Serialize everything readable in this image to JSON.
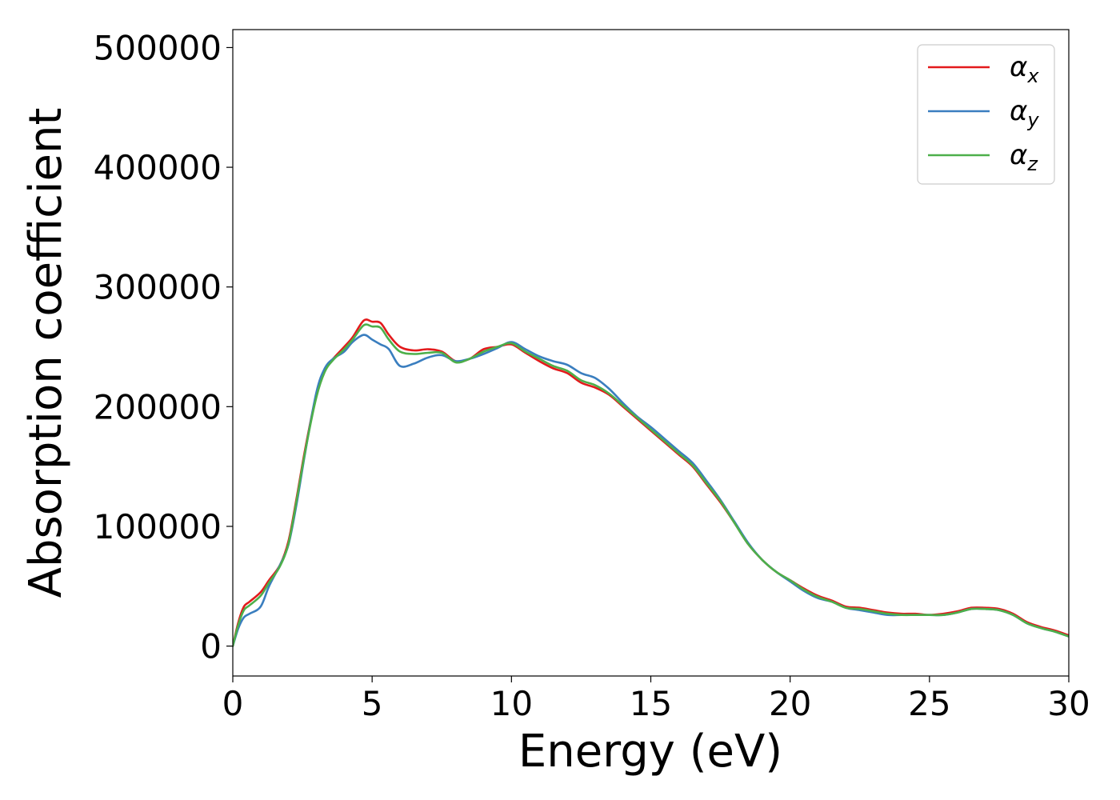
{
  "chart_data": {
    "type": "line",
    "title": "",
    "xlabel": "Energy (eV)",
    "ylabel": "Absorption coefficient",
    "xlim": [
      0,
      30
    ],
    "ylim": [
      -25000,
      515000
    ],
    "xticks": [
      0,
      5,
      10,
      15,
      20,
      25,
      30
    ],
    "yticks": [
      0,
      100000,
      200000,
      300000,
      400000,
      500000
    ],
    "grid": false,
    "legend_position": "top-right",
    "series": [
      {
        "name": "α",
        "subscript": "x",
        "color": "#e31a1c",
        "x": [
          0,
          0.2,
          0.4,
          0.6,
          1.0,
          1.3,
          1.7,
          2.0,
          2.3,
          2.6,
          3.0,
          3.3,
          3.6,
          4.0,
          4.3,
          4.7,
          5.0,
          5.3,
          5.6,
          6.0,
          6.5,
          7.0,
          7.5,
          8.0,
          8.5,
          9.0,
          9.5,
          10.0,
          10.5,
          11.0,
          11.5,
          12.0,
          12.5,
          13.0,
          13.5,
          14.0,
          14.5,
          15.0,
          15.5,
          16.0,
          16.5,
          17.0,
          17.5,
          18.0,
          18.5,
          19.0,
          19.5,
          20.0,
          20.5,
          21.0,
          21.5,
          22.0,
          22.5,
          23.0,
          23.5,
          24.0,
          24.5,
          25.0,
          25.5,
          26.0,
          26.5,
          27.0,
          27.5,
          28.0,
          28.5,
          29.0,
          29.5,
          30.0
        ],
        "y": [
          0,
          20000,
          33000,
          37000,
          45000,
          55000,
          68000,
          88000,
          125000,
          165000,
          210000,
          230000,
          240000,
          250000,
          258000,
          272000,
          271000,
          270000,
          260000,
          250000,
          247000,
          248000,
          246000,
          238000,
          240000,
          248000,
          250000,
          252000,
          245000,
          238000,
          232000,
          228000,
          220000,
          216000,
          210000,
          200000,
          190000,
          180000,
          170000,
          160000,
          150000,
          135000,
          120000,
          103000,
          85000,
          72000,
          62000,
          55000,
          48000,
          42000,
          38000,
          33000,
          32000,
          30000,
          28000,
          27000,
          27000,
          26000,
          27000,
          29000,
          32000,
          32000,
          31000,
          27000,
          20000,
          16000,
          13000,
          9000
        ]
      },
      {
        "name": "α",
        "subscript": "y",
        "color": "#3a7ebf",
        "x": [
          0,
          0.2,
          0.4,
          0.6,
          1.0,
          1.3,
          1.7,
          2.0,
          2.3,
          2.6,
          3.0,
          3.3,
          3.6,
          4.0,
          4.3,
          4.7,
          5.0,
          5.3,
          5.6,
          6.0,
          6.5,
          7.0,
          7.5,
          8.0,
          8.5,
          9.0,
          9.5,
          10.0,
          10.5,
          11.0,
          11.5,
          12.0,
          12.5,
          13.0,
          13.5,
          14.0,
          14.5,
          15.0,
          15.5,
          16.0,
          16.5,
          17.0,
          17.5,
          18.0,
          18.5,
          19.0,
          19.5,
          20.0,
          20.5,
          21.0,
          21.5,
          22.0,
          22.5,
          23.0,
          23.5,
          24.0,
          24.5,
          25.0,
          25.5,
          26.0,
          26.5,
          27.0,
          27.5,
          28.0,
          28.5,
          29.0,
          29.5,
          30.0
        ],
        "y": [
          0,
          15000,
          24000,
          27000,
          33000,
          50000,
          68000,
          85000,
          120000,
          162000,
          212000,
          232000,
          240000,
          246000,
          254000,
          260000,
          256000,
          252000,
          248000,
          234000,
          236000,
          241000,
          243000,
          238000,
          240000,
          244000,
          249000,
          254000,
          248000,
          242000,
          238000,
          235000,
          228000,
          224000,
          215000,
          203000,
          192000,
          183000,
          173000,
          163000,
          153000,
          138000,
          122000,
          104000,
          86000,
          72000,
          62000,
          54000,
          46000,
          40000,
          37000,
          32000,
          30000,
          28000,
          26000,
          26000,
          26000,
          26000,
          26000,
          28000,
          31000,
          31000,
          30000,
          26000,
          19000,
          15000,
          12000,
          8000
        ]
      },
      {
        "name": "α",
        "subscript": "z",
        "color": "#4daf4a",
        "x": [
          0,
          0.2,
          0.4,
          0.6,
          1.0,
          1.3,
          1.7,
          2.0,
          2.3,
          2.6,
          3.0,
          3.3,
          3.6,
          4.0,
          4.3,
          4.7,
          5.0,
          5.3,
          5.6,
          6.0,
          6.5,
          7.0,
          7.5,
          8.0,
          8.5,
          9.0,
          9.5,
          10.0,
          10.5,
          11.0,
          11.5,
          12.0,
          12.5,
          13.0,
          13.5,
          14.0,
          14.5,
          15.0,
          15.5,
          16.0,
          16.5,
          17.0,
          17.5,
          18.0,
          18.5,
          19.0,
          19.5,
          20.0,
          20.5,
          21.0,
          21.5,
          22.0,
          22.5,
          23.0,
          23.5,
          24.0,
          24.5,
          25.0,
          25.5,
          26.0,
          26.5,
          27.0,
          27.5,
          28.0,
          28.5,
          29.0,
          29.5,
          30.0
        ],
        "y": [
          0,
          18000,
          30000,
          34000,
          42000,
          53000,
          67000,
          86000,
          123000,
          163000,
          208000,
          229000,
          239000,
          248000,
          256000,
          268000,
          267000,
          266000,
          256000,
          246000,
          244000,
          245000,
          245000,
          237000,
          240000,
          246000,
          250000,
          253000,
          246000,
          240000,
          234000,
          230000,
          222000,
          218000,
          211000,
          201000,
          191000,
          181000,
          171000,
          161000,
          151000,
          136000,
          121000,
          103000,
          85000,
          72000,
          62000,
          55000,
          47000,
          41000,
          37000,
          32000,
          31000,
          29000,
          27000,
          26000,
          26000,
          26000,
          26000,
          28000,
          31000,
          31000,
          30000,
          26000,
          19000,
          15000,
          12000,
          8000
        ]
      }
    ]
  }
}
